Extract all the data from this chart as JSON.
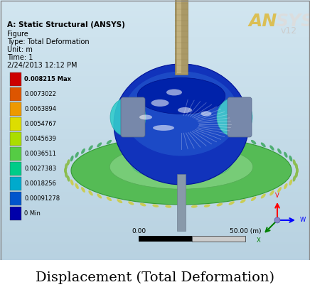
{
  "title_caption": "Displacement (Total Deformation)",
  "ansys_header": "A: Static Structural (ANSYS)",
  "figure_label": "Figure",
  "type_label": "Type: Total Deformation",
  "unit_label": "Unit: m",
  "time_label": "Time: 1",
  "date_label": "2/24/2013 12:12 PM",
  "colorbar_values": [
    "0.008215 Max",
    "0.0073022",
    "0.0063894",
    "0.0054767",
    "0.0045639",
    "0.0036511",
    "0.0027383",
    "0.0018256",
    "0.00091278",
    "0 Min"
  ],
  "colorbar_colors": [
    "#cc0000",
    "#dd5500",
    "#ee9900",
    "#dddd00",
    "#aadd00",
    "#55cc44",
    "#00cc88",
    "#00aacc",
    "#0055cc",
    "#0000aa"
  ],
  "scale_left": "0.00",
  "scale_right": "50.00 (m)",
  "ansys_version": "v12",
  "bg_color": "#b8cfe0",
  "border_color": "#999999",
  "caption_fontsize": 14,
  "fig_width": 4.36,
  "fig_height": 4.11,
  "dpi": 100
}
